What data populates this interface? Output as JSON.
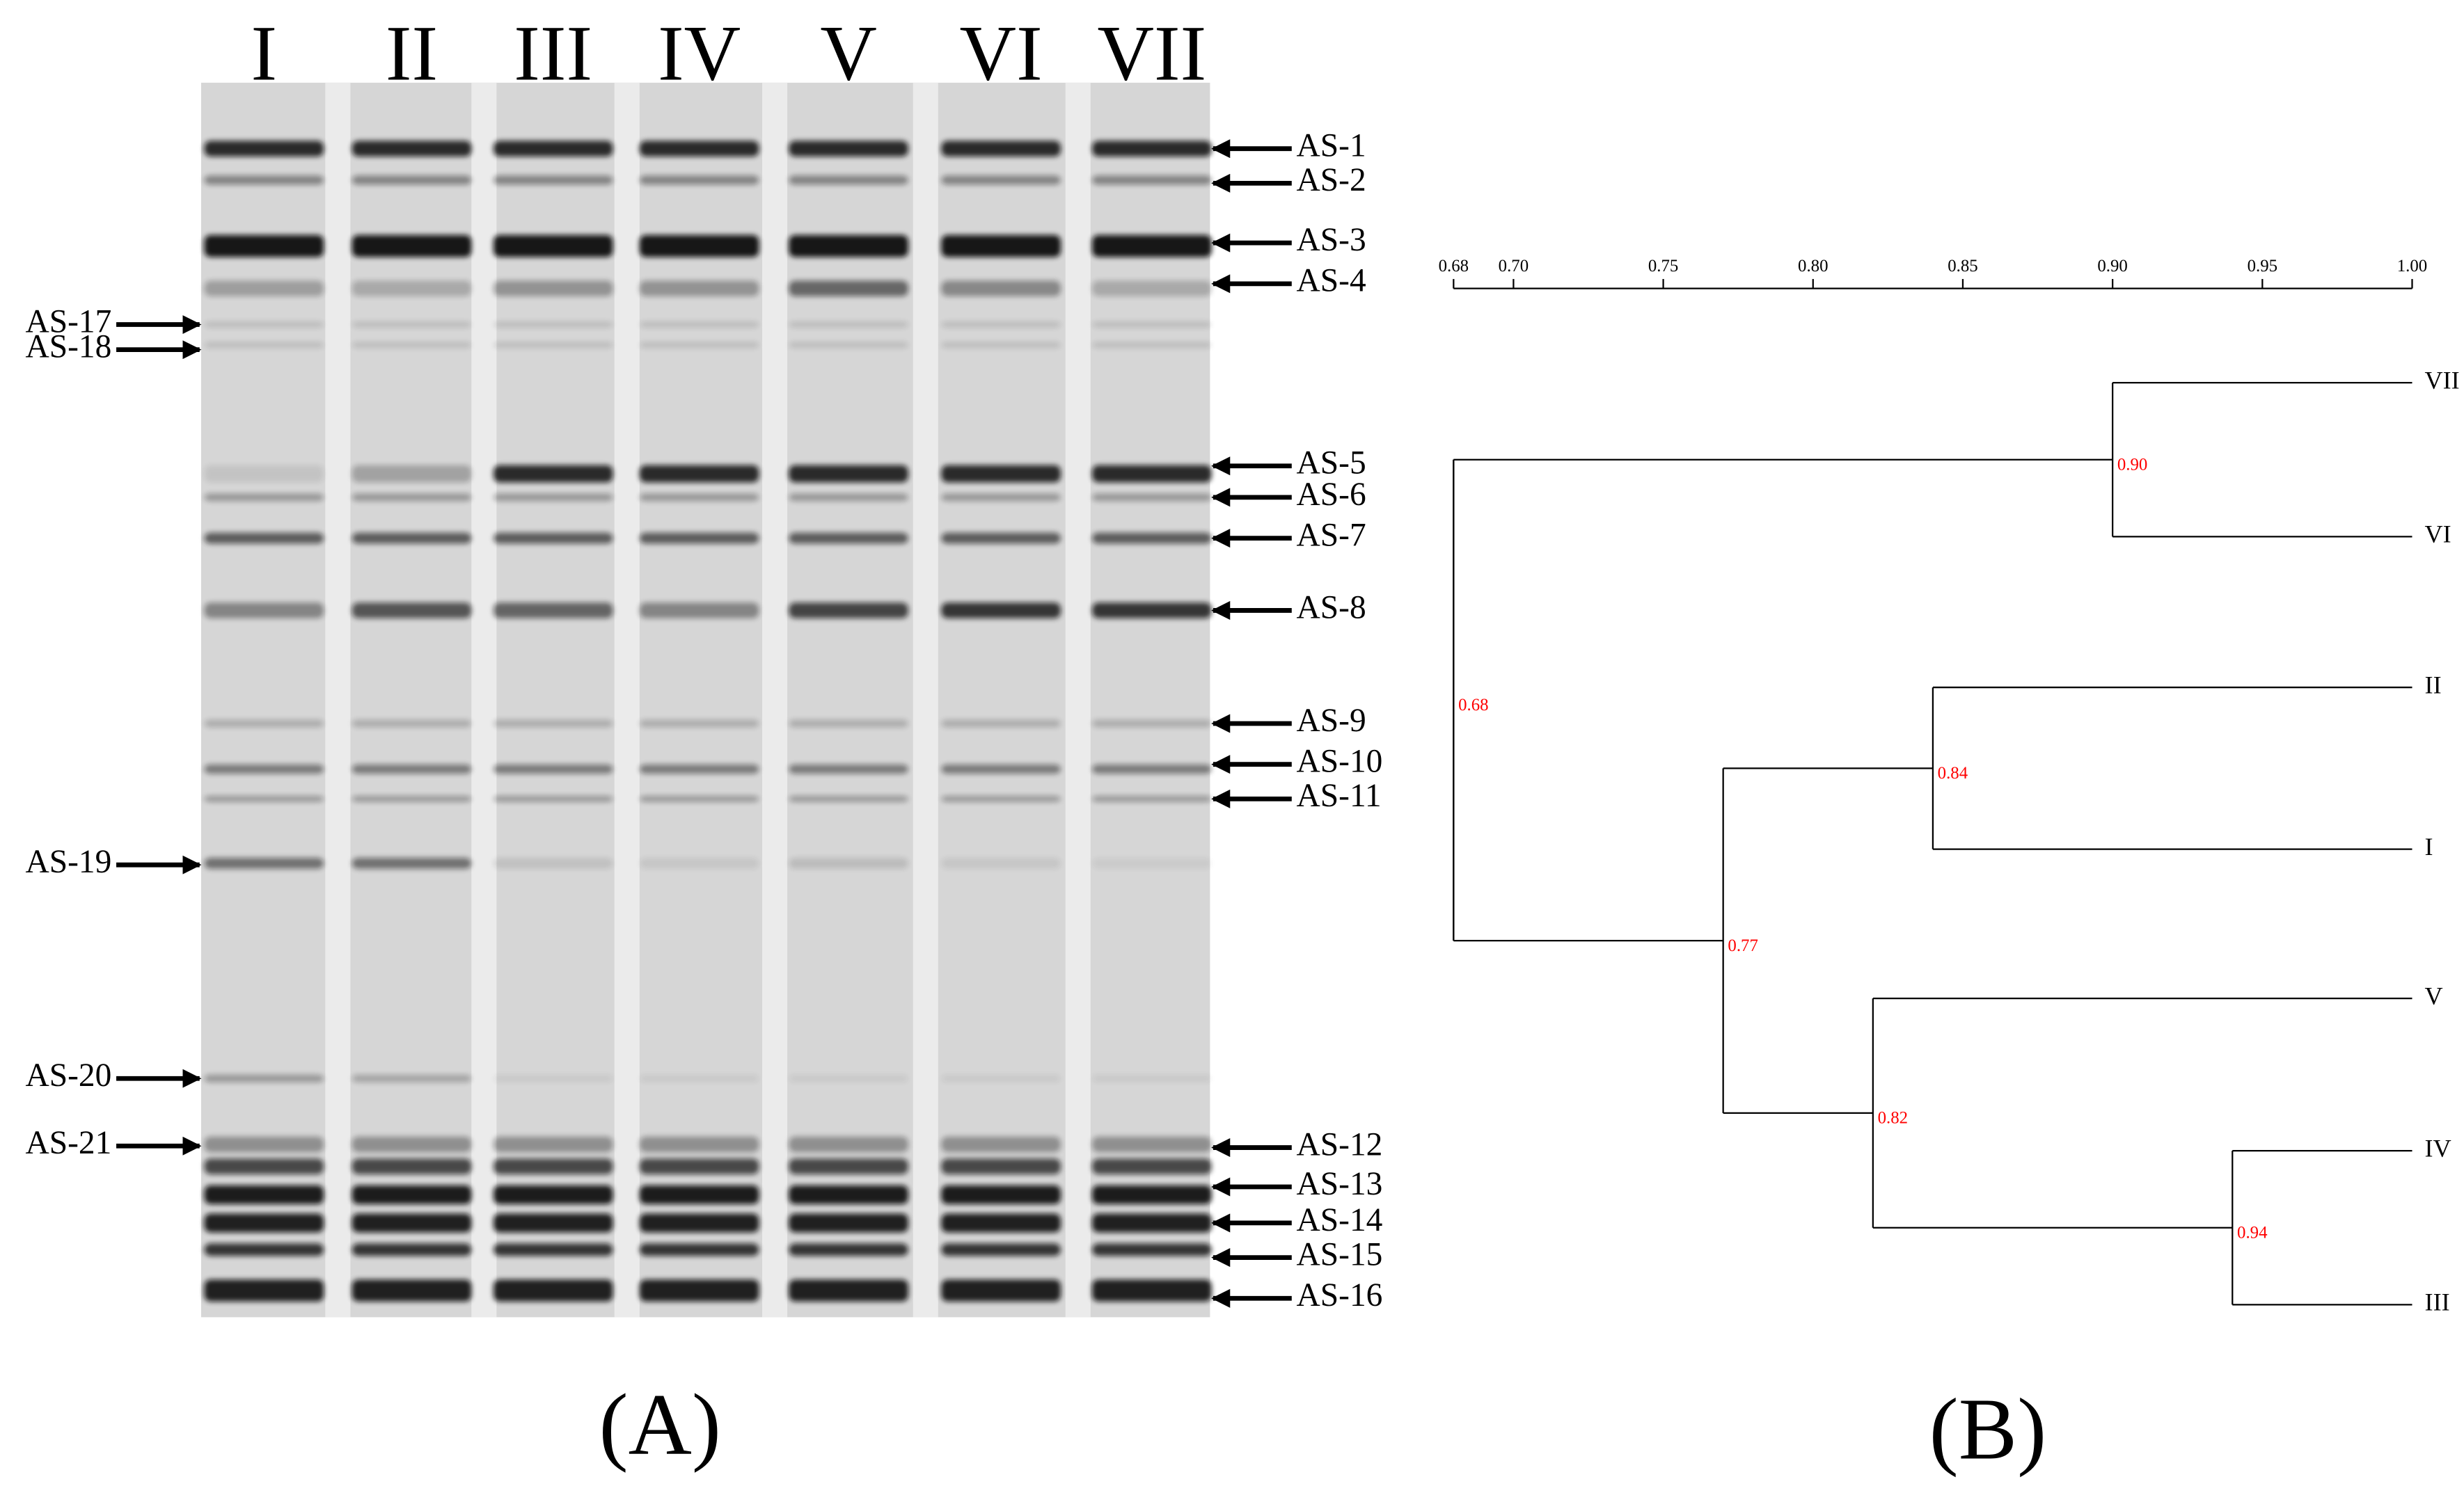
{
  "figure": {
    "panel_a": {
      "label": "(A)",
      "lanes": [
        "I",
        "II",
        "III",
        "IV",
        "V",
        "VI",
        "VII"
      ],
      "right_bands": [
        "AS-1",
        "AS-2",
        "AS-3",
        "AS-4",
        "AS-5",
        "AS-6",
        "AS-7",
        "AS-8",
        "AS-9",
        "AS-10",
        "AS-11",
        "AS-12",
        "AS-13",
        "AS-14",
        "AS-15",
        "AS-16"
      ],
      "left_bands": [
        "AS-17",
        "AS-18",
        "AS-19",
        "AS-20",
        "AS-21"
      ]
    },
    "panel_b": {
      "label": "(B)"
    }
  },
  "chart_data": {
    "type": "dendrogram",
    "xlim": [
      0.68,
      1.0
    ],
    "xticks": [
      0.68,
      {
        "value": 0.7,
        "label": "0.70"
      },
      0.75,
      {
        "value": 0.8,
        "label": "0.80"
      },
      0.85,
      {
        "value": 0.9,
        "label": "0.90"
      },
      0.95,
      {
        "value": 1.0,
        "label": "1.00"
      }
    ],
    "leaves": [
      "VII",
      "VI",
      "II",
      "I",
      "V",
      "IV",
      "III"
    ],
    "nodes": {
      "values": [
        0.9,
        0.84,
        0.77,
        0.82,
        0.94,
        0.68
      ],
      "value_labels": [
        "0.90",
        "0.84",
        "0.77",
        "0.82",
        "0.94",
        "0.68"
      ],
      "color": "#ff0000"
    }
  }
}
